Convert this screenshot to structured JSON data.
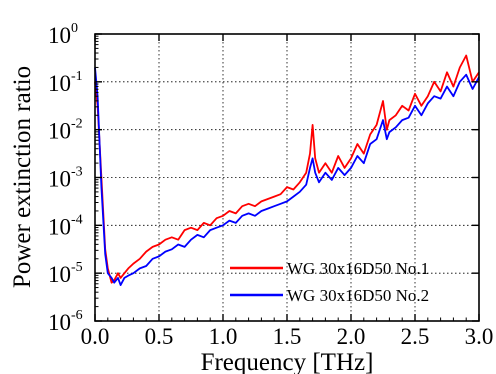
{
  "chart_data": {
    "type": "line",
    "title": "",
    "xlabel": "Frequency [THz]",
    "ylabel": "Power extinction ratio",
    "xlim": [
      0.0,
      3.0
    ],
    "ylim_log10": [
      -6,
      0
    ],
    "y_scale": "log",
    "grid": true,
    "grid_style": "dotted",
    "legend_position": "bottom-right",
    "x_ticks": [
      "0.0",
      "0.5",
      "1.0",
      "1.5",
      "2.0",
      "2.5",
      "3.0"
    ],
    "x_tick_values": [
      0.0,
      0.5,
      1.0,
      1.5,
      2.0,
      2.5,
      3.0
    ],
    "y_ticks": [
      {
        "base": "10",
        "exp": "0",
        "value": 0
      },
      {
        "base": "10",
        "exp": "-1",
        "value": -1
      },
      {
        "base": "10",
        "exp": "-2",
        "value": -2
      },
      {
        "base": "10",
        "exp": "-3",
        "value": -3
      },
      {
        "base": "10",
        "exp": "-4",
        "value": -4
      },
      {
        "base": "10",
        "exp": "-5",
        "value": -5
      },
      {
        "base": "10",
        "exp": "-6",
        "value": -6
      }
    ],
    "series": [
      {
        "name": "WG 30x16D50 No.1",
        "color": "#ff0000",
        "points_log10": [
          [
            0.0,
            -1.0
          ],
          [
            0.02,
            -1.5
          ],
          [
            0.05,
            -3.0
          ],
          [
            0.08,
            -4.5
          ],
          [
            0.1,
            -4.9
          ],
          [
            0.13,
            -5.2
          ],
          [
            0.15,
            -5.15
          ],
          [
            0.18,
            -5.0
          ],
          [
            0.2,
            -5.1
          ],
          [
            0.23,
            -5.0
          ],
          [
            0.26,
            -4.9
          ],
          [
            0.3,
            -4.8
          ],
          [
            0.35,
            -4.7
          ],
          [
            0.4,
            -4.55
          ],
          [
            0.45,
            -4.45
          ],
          [
            0.5,
            -4.4
          ],
          [
            0.55,
            -4.3
          ],
          [
            0.6,
            -4.25
          ],
          [
            0.65,
            -4.3
          ],
          [
            0.7,
            -4.1
          ],
          [
            0.75,
            -4.05
          ],
          [
            0.8,
            -4.1
          ],
          [
            0.85,
            -3.95
          ],
          [
            0.9,
            -4.0
          ],
          [
            0.95,
            -3.85
          ],
          [
            1.0,
            -3.8
          ],
          [
            1.05,
            -3.7
          ],
          [
            1.1,
            -3.75
          ],
          [
            1.15,
            -3.6
          ],
          [
            1.2,
            -3.55
          ],
          [
            1.25,
            -3.6
          ],
          [
            1.3,
            -3.5
          ],
          [
            1.35,
            -3.45
          ],
          [
            1.4,
            -3.4
          ],
          [
            1.45,
            -3.35
          ],
          [
            1.5,
            -3.2
          ],
          [
            1.55,
            -3.25
          ],
          [
            1.6,
            -3.1
          ],
          [
            1.65,
            -2.9
          ],
          [
            1.68,
            -2.5
          ],
          [
            1.7,
            -1.9
          ],
          [
            1.72,
            -2.6
          ],
          [
            1.75,
            -2.9
          ],
          [
            1.8,
            -2.7
          ],
          [
            1.85,
            -2.9
          ],
          [
            1.9,
            -2.55
          ],
          [
            1.95,
            -2.8
          ],
          [
            2.0,
            -2.6
          ],
          [
            2.05,
            -2.3
          ],
          [
            2.1,
            -2.5
          ],
          [
            2.15,
            -2.1
          ],
          [
            2.2,
            -1.9
          ],
          [
            2.25,
            -1.4
          ],
          [
            2.28,
            -2.0
          ],
          [
            2.3,
            -1.8
          ],
          [
            2.35,
            -1.7
          ],
          [
            2.4,
            -1.5
          ],
          [
            2.45,
            -1.6
          ],
          [
            2.5,
            -1.25
          ],
          [
            2.55,
            -1.5
          ],
          [
            2.6,
            -1.3
          ],
          [
            2.65,
            -1.0
          ],
          [
            2.7,
            -1.2
          ],
          [
            2.75,
            -0.8
          ],
          [
            2.8,
            -1.1
          ],
          [
            2.85,
            -0.7
          ],
          [
            2.9,
            -0.45
          ],
          [
            2.95,
            -1.0
          ],
          [
            3.0,
            -0.8
          ]
        ]
      },
      {
        "name": "WG 30x16D50 No.2",
        "color": "#0000ff",
        "points_log10": [
          [
            0.0,
            -0.7
          ],
          [
            0.02,
            -1.3
          ],
          [
            0.05,
            -3.2
          ],
          [
            0.08,
            -4.6
          ],
          [
            0.1,
            -5.0
          ],
          [
            0.13,
            -5.1
          ],
          [
            0.15,
            -5.2
          ],
          [
            0.18,
            -5.1
          ],
          [
            0.2,
            -5.25
          ],
          [
            0.23,
            -5.1
          ],
          [
            0.26,
            -5.05
          ],
          [
            0.3,
            -5.0
          ],
          [
            0.35,
            -4.9
          ],
          [
            0.4,
            -4.85
          ],
          [
            0.45,
            -4.7
          ],
          [
            0.5,
            -4.65
          ],
          [
            0.55,
            -4.55
          ],
          [
            0.6,
            -4.5
          ],
          [
            0.65,
            -4.4
          ],
          [
            0.7,
            -4.45
          ],
          [
            0.75,
            -4.3
          ],
          [
            0.8,
            -4.2
          ],
          [
            0.85,
            -4.25
          ],
          [
            0.9,
            -4.1
          ],
          [
            0.95,
            -4.05
          ],
          [
            1.0,
            -4.0
          ],
          [
            1.05,
            -3.9
          ],
          [
            1.1,
            -3.95
          ],
          [
            1.15,
            -3.8
          ],
          [
            1.2,
            -3.75
          ],
          [
            1.25,
            -3.8
          ],
          [
            1.3,
            -3.7
          ],
          [
            1.35,
            -3.65
          ],
          [
            1.4,
            -3.6
          ],
          [
            1.45,
            -3.55
          ],
          [
            1.5,
            -3.5
          ],
          [
            1.55,
            -3.4
          ],
          [
            1.6,
            -3.3
          ],
          [
            1.65,
            -3.15
          ],
          [
            1.68,
            -2.8
          ],
          [
            1.7,
            -2.6
          ],
          [
            1.72,
            -2.9
          ],
          [
            1.75,
            -3.1
          ],
          [
            1.8,
            -2.9
          ],
          [
            1.85,
            -3.05
          ],
          [
            1.9,
            -2.8
          ],
          [
            1.95,
            -2.95
          ],
          [
            2.0,
            -2.8
          ],
          [
            2.05,
            -2.55
          ],
          [
            2.1,
            -2.7
          ],
          [
            2.15,
            -2.3
          ],
          [
            2.2,
            -2.2
          ],
          [
            2.25,
            -1.8
          ],
          [
            2.28,
            -2.2
          ],
          [
            2.3,
            -2.05
          ],
          [
            2.35,
            -1.95
          ],
          [
            2.4,
            -1.8
          ],
          [
            2.45,
            -1.75
          ],
          [
            2.5,
            -1.5
          ],
          [
            2.55,
            -1.7
          ],
          [
            2.6,
            -1.45
          ],
          [
            2.65,
            -1.3
          ],
          [
            2.7,
            -1.35
          ],
          [
            2.75,
            -1.1
          ],
          [
            2.8,
            -1.3
          ],
          [
            2.85,
            -1.0
          ],
          [
            2.9,
            -0.85
          ],
          [
            2.95,
            -1.15
          ],
          [
            3.0,
            -0.9
          ]
        ]
      }
    ]
  }
}
